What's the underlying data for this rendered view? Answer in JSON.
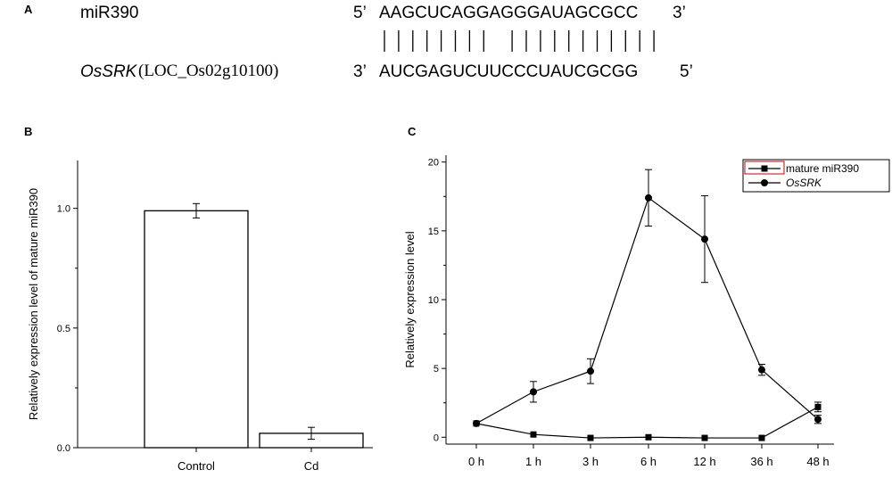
{
  "panelA": {
    "letter": "A",
    "mirna_name": "miR390",
    "mirna_5p": "5’",
    "mirna_seq": "AAGCUCAGGAGGGAUAGCGCC",
    "mirna_3p": "3’",
    "target_gene": "OsSRK",
    "target_locus": "(LOC_Os02g10100)",
    "target_3p": "3’",
    "target_seq": "AUCGAGUCUUCCCUAUCGCGG",
    "target_5p": "5’",
    "pairing": [
      1,
      1,
      1,
      1,
      1,
      1,
      1,
      1,
      0,
      1,
      1,
      1,
      1,
      1,
      1,
      1,
      1,
      1,
      1,
      1,
      0
    ]
  },
  "panelB": {
    "letter": "B"
  },
  "panelC": {
    "letter": "C"
  },
  "chart_data": [
    {
      "type": "bar",
      "categories": [
        "Control",
        "Cd"
      ],
      "values": [
        0.99,
        0.06
      ],
      "errors": [
        0.03,
        0.025
      ],
      "ylabel": "Relatively expression level of mature miR390",
      "xlabel": "",
      "ylim": [
        0,
        1.2
      ],
      "yticks": [
        "0.0",
        "0.5",
        "1.0"
      ],
      "yticks_values": [
        0,
        0.5,
        1.0
      ],
      "bar_fill": "#ffffff",
      "bar_stroke": "#000000"
    },
    {
      "type": "line",
      "categories": [
        "0 h",
        "1 h",
        "3 h",
        "6 h",
        "12 h",
        "36 h",
        "48 h"
      ],
      "ylabel": "Relatively expression level",
      "xlabel": "",
      "ylim": [
        -0.5,
        20.5
      ],
      "yticks": [
        "0",
        "5",
        "10",
        "15",
        "20"
      ],
      "yticks_values": [
        0,
        5,
        10,
        15,
        20
      ],
      "legend_position": "top-right",
      "legend_border_color": "#cc0000",
      "series": [
        {
          "name": "mature miR390",
          "marker": "square",
          "italic": false,
          "values": [
            1.0,
            0.2,
            -0.05,
            0.0,
            -0.05,
            -0.05,
            2.2
          ],
          "errors": [
            0.1,
            0.05,
            0.05,
            0.05,
            0.05,
            0.05,
            0.35
          ]
        },
        {
          "name": "OsSRK",
          "marker": "circle",
          "italic": true,
          "values": [
            1.0,
            3.3,
            4.8,
            17.4,
            14.4,
            4.9,
            1.3
          ],
          "errors": [
            0.1,
            0.75,
            0.9,
            2.05,
            3.15,
            0.4,
            0.3
          ]
        }
      ]
    }
  ]
}
